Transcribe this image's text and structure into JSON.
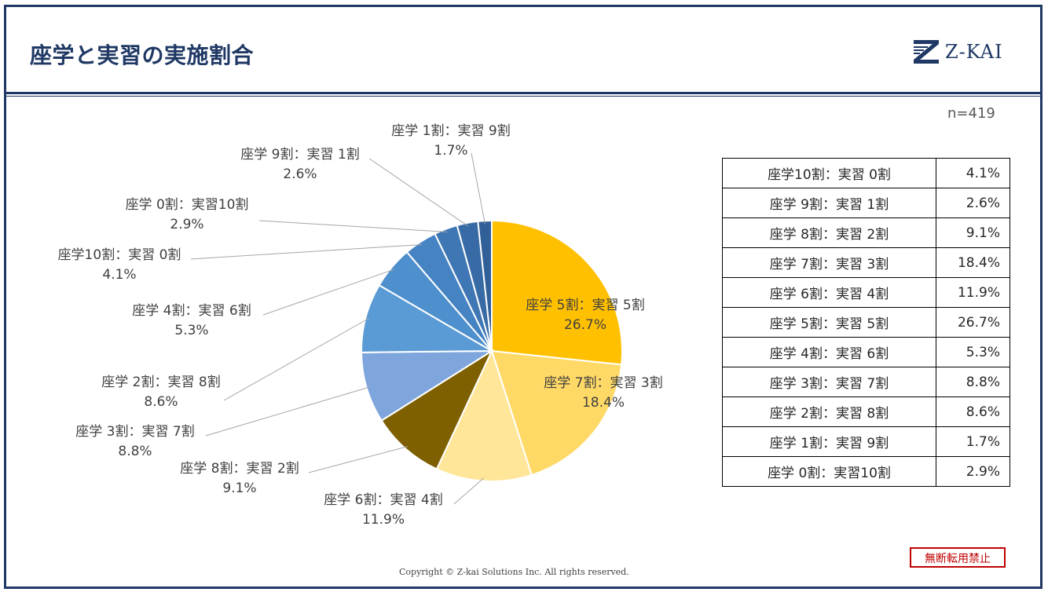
{
  "header": {
    "title": "座学と実習の実施割合",
    "logo_text": "Z-KAI"
  },
  "n_label": "n=419",
  "footer": {
    "copyright": "Copyright © Z-kai Solutions Inc. All rights reserved.",
    "stamp": "無断転用禁止"
  },
  "colors": {
    "frame": "#1f3864",
    "stamp": "#c00000"
  },
  "chart_data": {
    "type": "pie",
    "title": "",
    "start": "12 o'clock",
    "direction": "clockwise",
    "slices": [
      {
        "label": "座学 5割：実習 5割",
        "value": 26.7,
        "display": "26.7%",
        "color": "#ffc000"
      },
      {
        "label": "座学 7割：実習 3割",
        "value": 18.4,
        "display": "18.4%",
        "color": "#ffd966"
      },
      {
        "label": "座学 6割：実習 4割",
        "value": 11.9,
        "display": "11.9%",
        "color": "#ffe699"
      },
      {
        "label": "座学 8割：実習 2割",
        "value": 9.1,
        "display": "9.1%",
        "color": "#7f6000"
      },
      {
        "label": "座学 3割：実習 7割",
        "value": 8.8,
        "display": "8.8%",
        "color": "#7ea6dc"
      },
      {
        "label": "座学 2割：実習 8割",
        "value": 8.6,
        "display": "8.6%",
        "color": "#5b9bd5"
      },
      {
        "label": "座学 4割：実習 6割",
        "value": 5.3,
        "display": "5.3%",
        "color": "#4e8fcd"
      },
      {
        "label": "座学10割：実習 0割",
        "value": 4.1,
        "display": "4.1%",
        "color": "#4683c2"
      },
      {
        "label": "座学 0割：実習10割",
        "value": 2.9,
        "display": "2.9%",
        "color": "#3f77b4"
      },
      {
        "label": "座学 9割：実習 1割",
        "value": 2.6,
        "display": "2.6%",
        "color": "#386ba6"
      },
      {
        "label": "座学 1割：実習 9割",
        "value": 1.7,
        "display": "1.7%",
        "color": "#315f97"
      }
    ]
  },
  "table": {
    "rows": [
      {
        "label": "座学10割：実習 0割",
        "value": "4.1%"
      },
      {
        "label": "座学 9割：実習 1割",
        "value": "2.6%"
      },
      {
        "label": "座学 8割：実習 2割",
        "value": "9.1%"
      },
      {
        "label": "座学 7割：実習 3割",
        "value": "18.4%"
      },
      {
        "label": "座学 6割：実習 4割",
        "value": "11.9%"
      },
      {
        "label": "座学 5割：実習 5割",
        "value": "26.7%"
      },
      {
        "label": "座学 4割：実習 6割",
        "value": "5.3%"
      },
      {
        "label": "座学 3割：実習 7割",
        "value": "8.8%"
      },
      {
        "label": "座学 2割：実習 8割",
        "value": "8.6%"
      },
      {
        "label": "座学 1割：実習 9割",
        "value": "1.7%"
      },
      {
        "label": "座学 0割：実習10割",
        "value": "2.9%"
      }
    ]
  }
}
